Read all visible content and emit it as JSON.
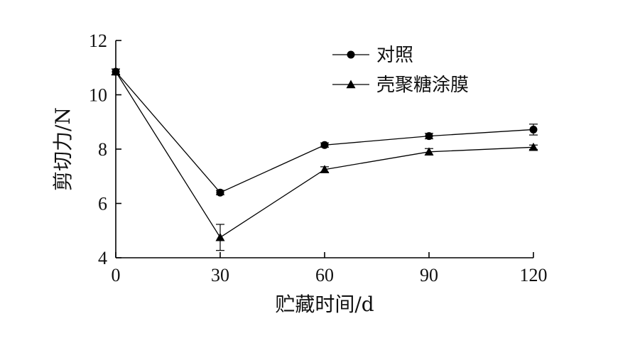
{
  "chart_data": {
    "type": "line",
    "xlabel": "贮藏时间/d",
    "ylabel": "剪切力/N",
    "x": [
      0,
      30,
      60,
      90,
      120
    ],
    "xticks": [
      "0",
      "30",
      "60",
      "90",
      "120"
    ],
    "yticks": [
      "4",
      "6",
      "8",
      "10",
      "12"
    ],
    "xlim": [
      0,
      120
    ],
    "ylim": [
      4,
      12
    ],
    "grid": false,
    "legend_position": "top-right",
    "series": [
      {
        "name": "对照",
        "marker": "circle",
        "values": [
          10.85,
          6.4,
          8.15,
          8.48,
          8.72
        ],
        "errors": [
          0.1,
          0.08,
          0.08,
          0.1,
          0.2
        ]
      },
      {
        "name": "壳聚糖涂膜",
        "marker": "triangle",
        "values": [
          10.85,
          4.75,
          7.25,
          7.9,
          8.07
        ],
        "errors": [
          0.1,
          0.48,
          0.1,
          0.12,
          0.08
        ]
      }
    ]
  }
}
